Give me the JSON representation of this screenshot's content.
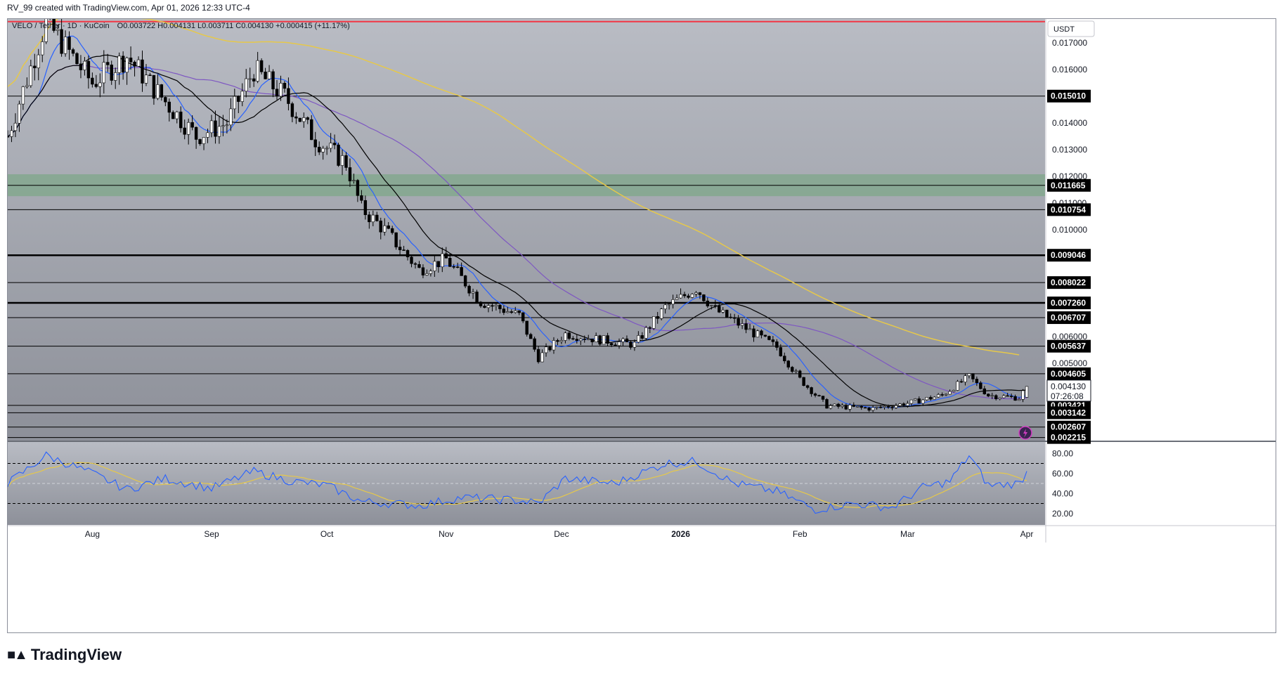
{
  "header": {
    "caption": "RV_99 created with TradingView.com, Apr 01, 2026 12:33 UTC-4"
  },
  "legend": {
    "symbol": "VELO / Tether · 1D · KuCoin",
    "ohlc": "O0.003722 H0.004131 L0.003711 C0.004130 +0.000415 (+11.17%)"
  },
  "currency_button": "USDT",
  "price_axis_labels": [
    "0.017000",
    "0.016000",
    "0.014000",
    "0.013000",
    "0.012000",
    "0.011000",
    "0.010000",
    "0.006000",
    "0.005000"
  ],
  "level_labels": [
    "0.015010",
    "0.011665",
    "0.010754",
    "0.009046",
    "0.008022",
    "0.007260",
    "0.006707",
    "0.005637",
    "0.004605",
    "0.003421",
    "0.003142",
    "0.002607",
    "0.002215"
  ],
  "last_price": {
    "price": "0.004130",
    "countdown": "07:26:08"
  },
  "rsi_axis_labels": [
    "80.00",
    "60.00",
    "40.00",
    "20.00"
  ],
  "time_labels": [
    "Aug",
    "Sep",
    "Oct",
    "Nov",
    "Dec",
    "2026",
    "Feb",
    "Mar",
    "Apr"
  ],
  "footer": {
    "brand": "TradingView"
  },
  "colors": {
    "background_top": "#b9bcc4",
    "background_bottom": "#8d9099",
    "resistance_line": "#f23645",
    "zone": "#6fa67a",
    "ema_fast": "#2962ff",
    "ema_slow": "#000000",
    "ma_mid": "#7e57c2",
    "ma_long": "#e6c84a",
    "rsi": "#2962ff",
    "rsi_ma": "#e6c84a",
    "candle_up": "#ffffff",
    "candle_down": "#000000"
  },
  "chart_data": {
    "type": "candlestick",
    "symbol": "VELO / Tether",
    "interval": "1D",
    "exchange": "KuCoin",
    "price_scale": [
      0.0021,
      0.0179
    ],
    "horizontal_levels": [
      0.01501,
      0.011665,
      0.010754,
      0.009046,
      0.008022,
      0.00726,
      0.006707,
      0.005637,
      0.004605,
      0.003421,
      0.003142,
      0.002607,
      0.002215
    ],
    "resistance_line": 0.0178,
    "zone": [
      0.01126,
      0.01208
    ],
    "approx_close_path": [
      {
        "date": "2025-07-10",
        "close": 0.0135
      },
      {
        "date": "2025-07-20",
        "close": 0.0178
      },
      {
        "date": "2025-08-01",
        "close": 0.0155
      },
      {
        "date": "2025-08-10",
        "close": 0.0165
      },
      {
        "date": "2025-08-20",
        "close": 0.0148
      },
      {
        "date": "2025-08-28",
        "close": 0.0135
      },
      {
        "date": "2025-09-05",
        "close": 0.014
      },
      {
        "date": "2025-09-12",
        "close": 0.016
      },
      {
        "date": "2025-09-20",
        "close": 0.015
      },
      {
        "date": "2025-09-28",
        "close": 0.0134
      },
      {
        "date": "2025-10-06",
        "close": 0.0125
      },
      {
        "date": "2025-10-10",
        "close": 0.0108
      },
      {
        "date": "2025-10-16",
        "close": 0.01
      },
      {
        "date": "2025-10-25",
        "close": 0.0085
      },
      {
        "date": "2025-11-01",
        "close": 0.0089
      },
      {
        "date": "2025-11-10",
        "close": 0.0073
      },
      {
        "date": "2025-11-20",
        "close": 0.0068
      },
      {
        "date": "2025-11-25",
        "close": 0.0052
      },
      {
        "date": "2025-12-02",
        "close": 0.0061
      },
      {
        "date": "2025-12-10",
        "close": 0.0059
      },
      {
        "date": "2025-12-20",
        "close": 0.0057
      },
      {
        "date": "2025-12-28",
        "close": 0.0071
      },
      {
        "date": "2026-01-05",
        "close": 0.0078
      },
      {
        "date": "2026-01-10",
        "close": 0.007
      },
      {
        "date": "2026-01-18",
        "close": 0.0063
      },
      {
        "date": "2026-01-26",
        "close": 0.0056
      },
      {
        "date": "2026-02-01",
        "close": 0.0044
      },
      {
        "date": "2026-02-08",
        "close": 0.0034
      },
      {
        "date": "2026-02-20",
        "close": 0.0033
      },
      {
        "date": "2026-03-01",
        "close": 0.0035
      },
      {
        "date": "2026-03-10",
        "close": 0.0038
      },
      {
        "date": "2026-03-17",
        "close": 0.0045
      },
      {
        "date": "2026-03-22",
        "close": 0.0038
      },
      {
        "date": "2026-03-30",
        "close": 0.0037
      },
      {
        "date": "2026-04-01",
        "close": 0.00413
      }
    ],
    "indicators": {
      "rsi_scale": [
        10,
        90
      ],
      "rsi_levels": [
        70,
        50,
        30
      ],
      "rsi_approx": [
        {
          "date": "2025-07-10",
          "value": 50
        },
        {
          "date": "2025-07-20",
          "value": 78
        },
        {
          "date": "2025-08-01",
          "value": 60
        },
        {
          "date": "2025-08-10",
          "value": 44
        },
        {
          "date": "2025-08-20",
          "value": 55
        },
        {
          "date": "2025-09-01",
          "value": 45
        },
        {
          "date": "2025-09-12",
          "value": 62
        },
        {
          "date": "2025-09-22",
          "value": 52
        },
        {
          "date": "2025-10-01",
          "value": 48
        },
        {
          "date": "2025-10-10",
          "value": 32
        },
        {
          "date": "2025-10-25",
          "value": 28
        },
        {
          "date": "2025-11-05",
          "value": 36
        },
        {
          "date": "2025-11-20",
          "value": 33
        },
        {
          "date": "2025-11-25",
          "value": 30
        },
        {
          "date": "2025-12-02",
          "value": 55
        },
        {
          "date": "2025-12-15",
          "value": 50
        },
        {
          "date": "2025-12-28",
          "value": 70
        },
        {
          "date": "2026-01-05",
          "value": 72
        },
        {
          "date": "2026-01-15",
          "value": 50
        },
        {
          "date": "2026-01-26",
          "value": 42
        },
        {
          "date": "2026-02-05",
          "value": 24
        },
        {
          "date": "2026-02-15",
          "value": 30
        },
        {
          "date": "2026-02-25",
          "value": 26
        },
        {
          "date": "2026-03-05",
          "value": 46
        },
        {
          "date": "2026-03-12",
          "value": 52
        },
        {
          "date": "2026-03-17",
          "value": 78
        },
        {
          "date": "2026-03-22",
          "value": 48
        },
        {
          "date": "2026-03-30",
          "value": 50
        },
        {
          "date": "2026-04-01",
          "value": 61
        }
      ]
    }
  }
}
